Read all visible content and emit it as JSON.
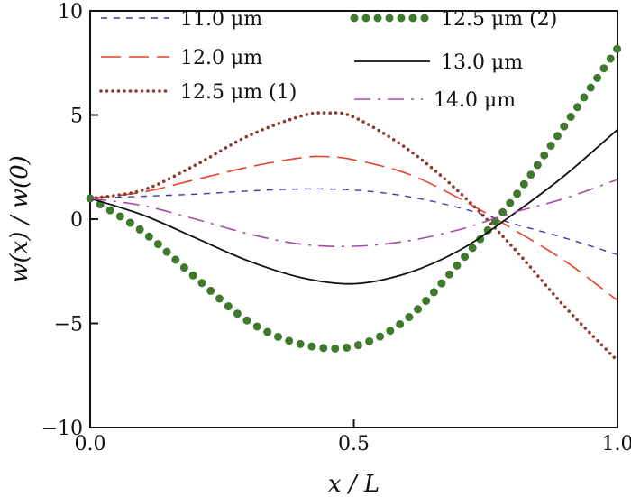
{
  "chart_data": {
    "type": "line",
    "xlabel": "x / L",
    "ylabel": "w(x) / w(0)",
    "xlim": [
      0,
      1
    ],
    "ylim": [
      -10,
      10
    ],
    "xticks": [
      0,
      0.5,
      1
    ],
    "xtick_labels": [
      "0.0",
      "0.5",
      "1.0"
    ],
    "yticks": [
      -10,
      -5,
      0,
      5,
      10
    ],
    "ytick_labels": [
      "−10",
      "−5",
      "0",
      "5",
      "10"
    ],
    "grid": false,
    "legend": "top, two columns",
    "series": [
      {
        "name": "11.0 μm",
        "color": "#3a3aa8",
        "style": "short-dash",
        "x": [
          0,
          0.1,
          0.2,
          0.3,
          0.4,
          0.5,
          0.6,
          0.7,
          0.8,
          0.9,
          1.0
        ],
        "y": [
          1.0,
          1.1,
          1.2,
          1.35,
          1.45,
          1.4,
          1.1,
          0.55,
          -0.2,
          -0.9,
          -1.7
        ]
      },
      {
        "name": "12.0 μm",
        "color": "#e8402a",
        "style": "long-dash",
        "x": [
          0,
          0.1,
          0.2,
          0.3,
          0.4,
          0.45,
          0.5,
          0.6,
          0.7,
          0.8,
          0.9,
          1.0
        ],
        "y": [
          1.0,
          1.3,
          1.9,
          2.5,
          2.95,
          3.0,
          2.85,
          2.2,
          1.0,
          -0.45,
          -2.0,
          -3.9
        ]
      },
      {
        "name": "12.5 μm (1)",
        "color": "#8b3a2b",
        "style": "dotted",
        "x": [
          0,
          0.1,
          0.2,
          0.3,
          0.4,
          0.45,
          0.5,
          0.6,
          0.7,
          0.8,
          0.9,
          1.0
        ],
        "y": [
          1.0,
          1.4,
          2.6,
          4.0,
          4.95,
          5.1,
          4.9,
          3.4,
          1.3,
          -1.3,
          -4.2,
          -6.8
        ]
      },
      {
        "name": "12.5 μm (2)",
        "color": "#3f7a2c",
        "style": "big-dots",
        "x": [
          0,
          0.1,
          0.2,
          0.3,
          0.4,
          0.5,
          0.6,
          0.7,
          0.8,
          0.9,
          1.0
        ],
        "y": [
          1.0,
          -0.6,
          -2.8,
          -4.9,
          -6.0,
          -6.1,
          -4.8,
          -2.1,
          0.9,
          4.5,
          8.2
        ]
      },
      {
        "name": "13.0 μm",
        "color": "#111111",
        "style": "solid",
        "x": [
          0,
          0.1,
          0.2,
          0.3,
          0.4,
          0.5,
          0.6,
          0.7,
          0.8,
          0.9,
          1.0
        ],
        "y": [
          1.0,
          0.2,
          -0.9,
          -2.0,
          -2.8,
          -3.1,
          -2.6,
          -1.5,
          0.2,
          2.1,
          4.3
        ]
      },
      {
        "name": "14.0 μm",
        "color": "#a64ca6",
        "style": "dash-dot",
        "x": [
          0,
          0.1,
          0.2,
          0.3,
          0.4,
          0.5,
          0.6,
          0.7,
          0.8,
          0.9,
          1.0
        ],
        "y": [
          1.0,
          0.65,
          0.0,
          -0.7,
          -1.2,
          -1.3,
          -1.05,
          -0.5,
          0.3,
          1.0,
          1.9
        ]
      }
    ]
  }
}
